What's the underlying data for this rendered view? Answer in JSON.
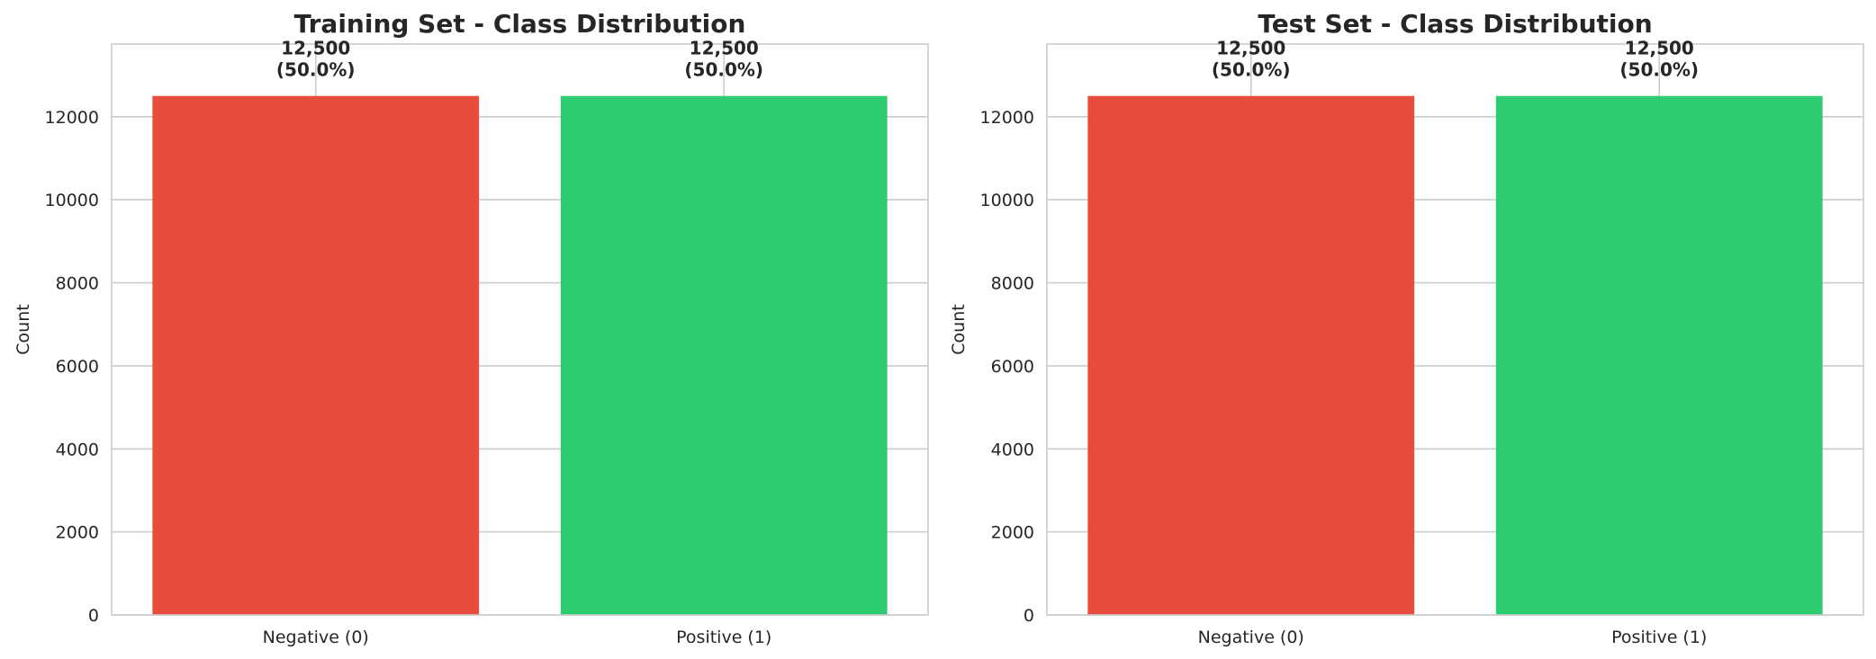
{
  "chart_data": [
    {
      "type": "bar",
      "title": "Training Set - Class Distribution",
      "ylabel": "Count",
      "xlabel": "",
      "categories": [
        "Negative (0)",
        "Positive (1)"
      ],
      "values": [
        12500,
        12500
      ],
      "bar_labels": [
        [
          "12,500",
          "(50.0%)"
        ],
        [
          "12,500",
          "(50.0%)"
        ]
      ],
      "colors": [
        "#e74c3c",
        "#2ecc71"
      ],
      "ylim": [
        0,
        13750
      ],
      "yticks": [
        0,
        2000,
        4000,
        6000,
        8000,
        10000,
        12000
      ],
      "ytick_labels": [
        "0",
        "2000",
        "4000",
        "6000",
        "8000",
        "10000",
        "12000"
      ],
      "grid": true
    },
    {
      "type": "bar",
      "title": "Test Set - Class Distribution",
      "ylabel": "Count",
      "xlabel": "",
      "categories": [
        "Negative (0)",
        "Positive (1)"
      ],
      "values": [
        12500,
        12500
      ],
      "bar_labels": [
        [
          "12,500",
          "(50.0%)"
        ],
        [
          "12,500",
          "(50.0%)"
        ]
      ],
      "colors": [
        "#e74c3c",
        "#2ecc71"
      ],
      "ylim": [
        0,
        13750
      ],
      "yticks": [
        0,
        2000,
        4000,
        6000,
        8000,
        10000,
        12000
      ],
      "ytick_labels": [
        "0",
        "2000",
        "4000",
        "6000",
        "8000",
        "10000",
        "12000"
      ],
      "grid": true
    }
  ]
}
